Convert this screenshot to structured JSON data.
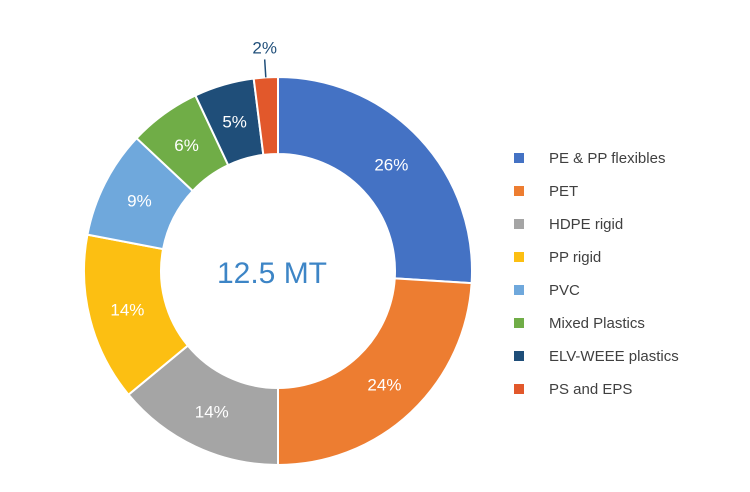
{
  "chart_data": {
    "type": "pie",
    "variant": "donut",
    "center_text": "12.5 MT",
    "categories": [
      "PE & PP flexibles",
      "PET",
      "HDPE rigid",
      "PP rigid",
      "PVC",
      "Mixed Plastics",
      "ELV-WEEE plastics",
      "PS and EPS"
    ],
    "values": [
      26,
      24,
      14,
      14,
      9,
      6,
      5,
      2
    ],
    "value_labels": [
      "26%",
      "24%",
      "14%",
      "14%",
      "9%",
      "6%",
      "5%",
      "2%"
    ],
    "colors": [
      "#4472c4",
      "#ed7d31",
      "#a5a5a5",
      "#fcbf12",
      "#6fa8dc",
      "#70ad47",
      "#1f4e79",
      "#e2582b"
    ],
    "legend_position": "right",
    "title": ""
  }
}
